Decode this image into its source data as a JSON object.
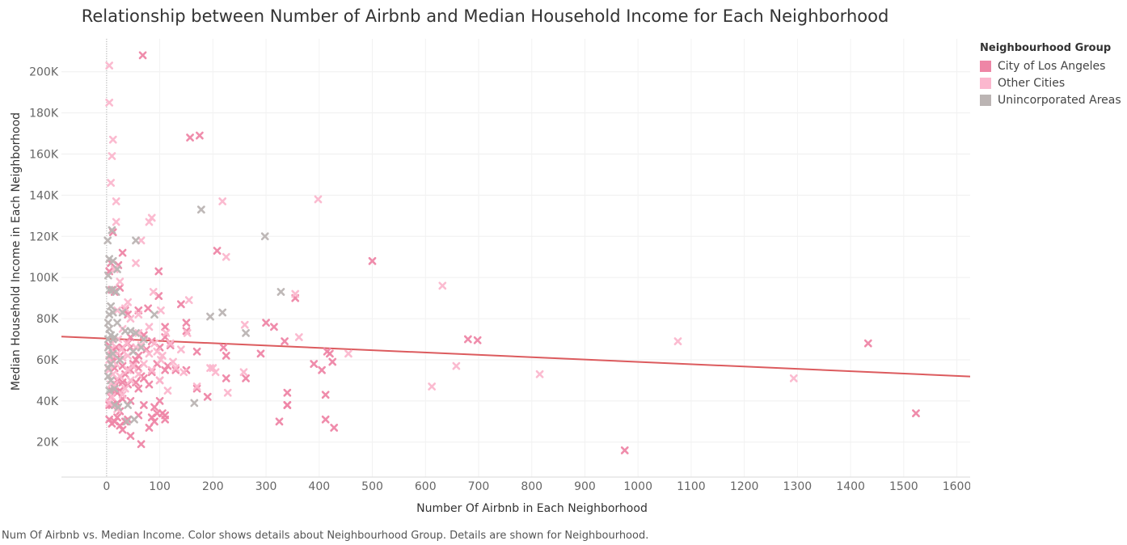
{
  "chart_data": {
    "type": "scatter",
    "title": "Relationship between Number of Airbnb and Median Household Income for Each Neighborhood",
    "xlabel": "Number Of Airbnb in Each Neighborhood",
    "ylabel": "Median Household Income in Each Neighborhood",
    "xlim": [
      -85,
      1625
    ],
    "ylim": [
      3000,
      216000
    ],
    "x_ticks": [
      0,
      100,
      200,
      300,
      400,
      500,
      600,
      700,
      800,
      900,
      1000,
      1100,
      1200,
      1300,
      1400,
      1500,
      1600
    ],
    "y_ticks": [
      20000,
      40000,
      60000,
      80000,
      100000,
      120000,
      140000,
      160000,
      180000,
      200000
    ],
    "y_tick_labels": [
      "20K",
      "40K",
      "60K",
      "80K",
      "100K",
      "120K",
      "140K",
      "160K",
      "180K",
      "200K"
    ],
    "grid": true,
    "legend": {
      "title": "Neighbourhood Group",
      "placement": "right",
      "items": [
        {
          "label": "City of Los Angeles",
          "color": "#EE86A6"
        },
        {
          "label": "Other Cities",
          "color": "#FBB7CE"
        },
        {
          "label": "Unincorporated Areas",
          "color": "#BBB4B3"
        }
      ]
    },
    "marker": "x",
    "trend_line": {
      "color": "#DC5B5E",
      "points": [
        [
          -85,
          71300
        ],
        [
          1625,
          51900
        ]
      ]
    },
    "series": [
      {
        "name": "City of Los Angeles",
        "color": "#EE86A6",
        "points": [
          [
            68,
            208000
          ],
          [
            157,
            168000
          ],
          [
            175,
            169000
          ],
          [
            208,
            113000
          ],
          [
            500,
            108000
          ],
          [
            98,
            103000
          ],
          [
            30,
            112000
          ],
          [
            22,
            106000
          ],
          [
            25,
            95000
          ],
          [
            12,
            122000
          ],
          [
            8,
            107000
          ],
          [
            5,
            103000
          ],
          [
            10,
            94000
          ],
          [
            15,
            93000
          ],
          [
            98,
            91000
          ],
          [
            78,
            85000
          ],
          [
            60,
            84000
          ],
          [
            35,
            84000
          ],
          [
            40,
            82000
          ],
          [
            140,
            87000
          ],
          [
            355,
            90000
          ],
          [
            300,
            78000
          ],
          [
            315,
            76000
          ],
          [
            150,
            78000
          ],
          [
            150,
            74000
          ],
          [
            110,
            76000
          ],
          [
            110,
            71000
          ],
          [
            120,
            67000
          ],
          [
            100,
            66000
          ],
          [
            85,
            69000
          ],
          [
            70,
            72000
          ],
          [
            75,
            65000
          ],
          [
            60,
            62000
          ],
          [
            45,
            71000
          ],
          [
            40,
            68000
          ],
          [
            30,
            66000
          ],
          [
            25,
            62000
          ],
          [
            20,
            61000
          ],
          [
            18,
            66000
          ],
          [
            12,
            65000
          ],
          [
            10,
            60000
          ],
          [
            8,
            62000
          ],
          [
            5,
            67000
          ],
          [
            15,
            56000
          ],
          [
            30,
            57000
          ],
          [
            45,
            55000
          ],
          [
            60,
            56000
          ],
          [
            85,
            54000
          ],
          [
            110,
            55000
          ],
          [
            150,
            55000
          ],
          [
            100,
            50000
          ],
          [
            80,
            48000
          ],
          [
            70,
            51000
          ],
          [
            55,
            49000
          ],
          [
            40,
            48000
          ],
          [
            30,
            49000
          ],
          [
            20,
            50000
          ],
          [
            15,
            47000
          ],
          [
            10,
            45000
          ],
          [
            8,
            42000
          ],
          [
            5,
            38000
          ],
          [
            10,
            38000
          ],
          [
            20,
            39000
          ],
          [
            30,
            41000
          ],
          [
            45,
            40000
          ],
          [
            60,
            46000
          ],
          [
            70,
            38000
          ],
          [
            90,
            37000
          ],
          [
            100,
            40000
          ],
          [
            110,
            33000
          ],
          [
            130,
            55000
          ],
          [
            170,
            46000
          ],
          [
            190,
            42000
          ],
          [
            220,
            66000
          ],
          [
            225,
            62000
          ],
          [
            225,
            51000
          ],
          [
            262,
            51000
          ],
          [
            290,
            63000
          ],
          [
            335,
            69000
          ],
          [
            340,
            44000
          ],
          [
            340,
            38000
          ],
          [
            325,
            30000
          ],
          [
            390,
            58000
          ],
          [
            405,
            55000
          ],
          [
            415,
            64000
          ],
          [
            420,
            63000
          ],
          [
            425,
            59000
          ],
          [
            412,
            43000
          ],
          [
            412,
            31000
          ],
          [
            428,
            27000
          ],
          [
            170,
            64000
          ],
          [
            5,
            31000
          ],
          [
            10,
            29000
          ],
          [
            15,
            30000
          ],
          [
            20,
            32000
          ],
          [
            25,
            28000
          ],
          [
            30,
            26000
          ],
          [
            45,
            23000
          ],
          [
            65,
            19000
          ],
          [
            80,
            27000
          ],
          [
            90,
            30000
          ],
          [
            95,
            34000
          ],
          [
            105,
            34000
          ],
          [
            110,
            31000
          ],
          [
            85,
            32000
          ],
          [
            60,
            33000
          ],
          [
            40,
            31000
          ],
          [
            35,
            30000
          ],
          [
            25,
            35000
          ],
          [
            20,
            44000
          ],
          [
            115,
            57000
          ],
          [
            95,
            58000
          ],
          [
            45,
            66000
          ],
          [
            55,
            60000
          ],
          [
            65,
            52000
          ],
          [
            680,
            70000
          ],
          [
            698,
            69500
          ],
          [
            1433,
            68000
          ],
          [
            1523,
            34000
          ],
          [
            975,
            16000
          ],
          [
            340,
            38000
          ],
          [
            50,
            58000
          ],
          [
            35,
            53000
          ],
          [
            25,
            45000
          ]
        ]
      },
      {
        "name": "Other Cities",
        "color": "#FBB7CE",
        "points": [
          [
            5,
            203000
          ],
          [
            5,
            185000
          ],
          [
            12,
            167000
          ],
          [
            10,
            159000
          ],
          [
            8,
            146000
          ],
          [
            18,
            137000
          ],
          [
            218,
            137000
          ],
          [
            398,
            138000
          ],
          [
            85,
            129000
          ],
          [
            80,
            127000
          ],
          [
            18,
            127000
          ],
          [
            65,
            118000
          ],
          [
            225,
            110000
          ],
          [
            55,
            107000
          ],
          [
            15,
            104000
          ],
          [
            25,
            98000
          ],
          [
            632,
            96000
          ],
          [
            88,
            93000
          ],
          [
            155,
            89000
          ],
          [
            355,
            92000
          ],
          [
            40,
            88000
          ],
          [
            35,
            85000
          ],
          [
            102,
            84000
          ],
          [
            60,
            82000
          ],
          [
            45,
            80000
          ],
          [
            20,
            84000
          ],
          [
            260,
            77000
          ],
          [
            152,
            73000
          ],
          [
            112,
            73000
          ],
          [
            362,
            71000
          ],
          [
            1075,
            69000
          ],
          [
            80,
            76000
          ],
          [
            60,
            73000
          ],
          [
            30,
            75000
          ],
          [
            22,
            70000
          ],
          [
            10,
            68000
          ],
          [
            8,
            65000
          ],
          [
            5,
            60000
          ],
          [
            15,
            62000
          ],
          [
            30,
            61000
          ],
          [
            40,
            62000
          ],
          [
            55,
            66000
          ],
          [
            65,
            67000
          ],
          [
            80,
            63000
          ],
          [
            95,
            64000
          ],
          [
            105,
            62000
          ],
          [
            125,
            59000
          ],
          [
            130,
            56000
          ],
          [
            145,
            54000
          ],
          [
            195,
            56000
          ],
          [
            200,
            56000
          ],
          [
            205,
            54000
          ],
          [
            258,
            54000
          ],
          [
            455,
            63000
          ],
          [
            658,
            57000
          ],
          [
            612,
            47000
          ],
          [
            815,
            53000
          ],
          [
            1293,
            51000
          ],
          [
            100,
            50000
          ],
          [
            85,
            55000
          ],
          [
            60,
            53000
          ],
          [
            45,
            50000
          ],
          [
            35,
            46000
          ],
          [
            25,
            52000
          ],
          [
            15,
            48000
          ],
          [
            10,
            42000
          ],
          [
            5,
            39000
          ],
          [
            20,
            36000
          ],
          [
            30,
            43000
          ],
          [
            40,
            55000
          ],
          [
            50,
            57000
          ],
          [
            115,
            45000
          ],
          [
            170,
            47000
          ],
          [
            228,
            44000
          ],
          [
            5,
            55000
          ],
          [
            8,
            48000
          ],
          [
            12,
            53000
          ],
          [
            18,
            58000
          ],
          [
            28,
            65000
          ],
          [
            38,
            68000
          ],
          [
            70,
            58000
          ],
          [
            90,
            68000
          ],
          [
            102,
            60000
          ],
          [
            120,
            68000
          ],
          [
            140,
            65000
          ]
        ]
      },
      {
        "name": "Unincorporated Areas",
        "color": "#BBB4B3",
        "points": [
          [
            178,
            133000
          ],
          [
            298,
            120000
          ],
          [
            2,
            118000
          ],
          [
            10,
            123000
          ],
          [
            55,
            118000
          ],
          [
            5,
            109000
          ],
          [
            12,
            108000
          ],
          [
            20,
            104000
          ],
          [
            3,
            101000
          ],
          [
            5,
            94000
          ],
          [
            12,
            94000
          ],
          [
            18,
            93000
          ],
          [
            328,
            93000
          ],
          [
            8,
            86000
          ],
          [
            5,
            82000
          ],
          [
            12,
            83000
          ],
          [
            30,
            83000
          ],
          [
            218,
            83000
          ],
          [
            195,
            81000
          ],
          [
            262,
            73000
          ],
          [
            3,
            78000
          ],
          [
            5,
            75000
          ],
          [
            8,
            72000
          ],
          [
            3,
            70000
          ],
          [
            12,
            70000
          ],
          [
            20,
            78000
          ],
          [
            45,
            74000
          ],
          [
            55,
            73000
          ],
          [
            70,
            70000
          ],
          [
            3,
            66000
          ],
          [
            5,
            62000
          ],
          [
            8,
            58000
          ],
          [
            3,
            56000
          ],
          [
            12,
            63000
          ],
          [
            25,
            60000
          ],
          [
            50,
            64000
          ],
          [
            65,
            66000
          ],
          [
            3,
            52000
          ],
          [
            8,
            50000
          ],
          [
            15,
            46000
          ],
          [
            22,
            37000
          ],
          [
            38,
            30000
          ],
          [
            52,
            31000
          ],
          [
            40,
            38000
          ],
          [
            5,
            45000
          ],
          [
            15,
            38000
          ],
          [
            165,
            39000
          ],
          [
            90,
            82000
          ],
          [
            35,
            74000
          ],
          [
            15,
            71000
          ]
        ]
      }
    ]
  },
  "caption": "Num Of Airbnb vs. Median Income.  Color shows details about Neighbourhood Group.  Details are shown for Neighbourhood."
}
